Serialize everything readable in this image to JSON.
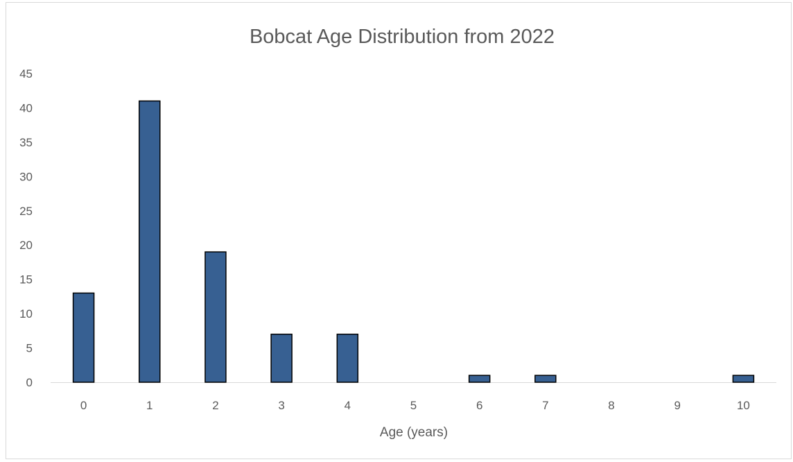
{
  "chart_data": {
    "type": "bar",
    "title": "Bobcat Age Distribution from 2022",
    "xlabel": "Age (years)",
    "ylabel": "",
    "categories": [
      "0",
      "1",
      "2",
      "3",
      "4",
      "5",
      "6",
      "7",
      "8",
      "9",
      "10"
    ],
    "values": [
      13,
      41,
      19,
      7,
      7,
      0,
      1,
      1,
      0,
      0,
      1
    ],
    "ylim": [
      0,
      45
    ],
    "yticks": [
      "0",
      "5",
      "10",
      "15",
      "20",
      "25",
      "30",
      "35",
      "40",
      "45"
    ],
    "grid": false,
    "legend": "none",
    "bar_color": "#376092",
    "bar_edge_color": "#000000"
  }
}
